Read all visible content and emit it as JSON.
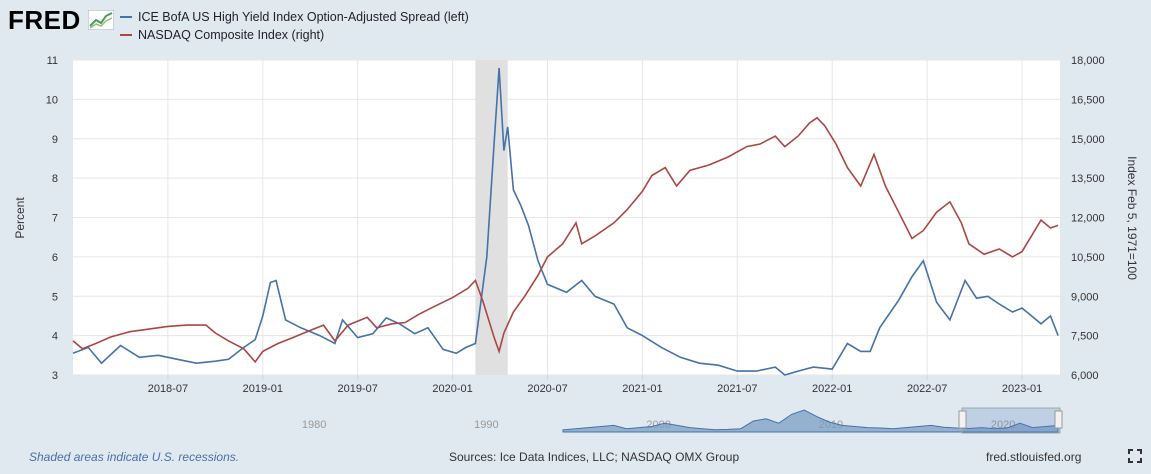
{
  "logo": {
    "text": "FRED"
  },
  "colors": {
    "spread": "#4572a7",
    "nasdaq": "#aa4643",
    "recession": "#e0e0e0",
    "plot_bg": "#ffffff",
    "grid": "#e6e6e6"
  },
  "chart_data": {
    "type": "line",
    "legend": [
      "ICE BofA US High Yield Index Option-Adjusted Spread (left)",
      "NASDAQ Composite Index (right)"
    ],
    "ylabel_left": "Percent",
    "ylabel_right": "Index Feb 5, 1971=100",
    "ylim_left": [
      3,
      11
    ],
    "ylim_right": [
      6000,
      18000
    ],
    "xlim": [
      2018.0,
      2023.2
    ],
    "left_ticks": [
      "3",
      "4",
      "5",
      "6",
      "7",
      "8",
      "9",
      "10",
      "11"
    ],
    "right_ticks": [
      "6,000",
      "7,500",
      "9,000",
      "10,500",
      "12,000",
      "13,500",
      "15,000",
      "16,500",
      "18,000"
    ],
    "x_ticks": [
      "2018-07",
      "2019-01",
      "2019-07",
      "2020-01",
      "2020-07",
      "2021-01",
      "2021-07",
      "2022-01",
      "2022-07",
      "2023-01"
    ],
    "recession": [
      2020.12,
      2020.29
    ],
    "series": [
      {
        "name": "ICE BofA US High Yield Index Option-Adjusted Spread (left)",
        "points": [
          [
            2018.0,
            3.55
          ],
          [
            2018.08,
            3.7
          ],
          [
            2018.15,
            3.3
          ],
          [
            2018.25,
            3.75
          ],
          [
            2018.35,
            3.45
          ],
          [
            2018.45,
            3.5
          ],
          [
            2018.55,
            3.4
          ],
          [
            2018.65,
            3.3
          ],
          [
            2018.75,
            3.35
          ],
          [
            2018.82,
            3.4
          ],
          [
            2018.9,
            3.7
          ],
          [
            2018.96,
            3.9
          ],
          [
            2019.0,
            4.5
          ],
          [
            2019.04,
            5.35
          ],
          [
            2019.07,
            5.4
          ],
          [
            2019.12,
            4.4
          ],
          [
            2019.2,
            4.2
          ],
          [
            2019.3,
            4.0
          ],
          [
            2019.38,
            3.8
          ],
          [
            2019.42,
            4.4
          ],
          [
            2019.5,
            3.95
          ],
          [
            2019.58,
            4.05
          ],
          [
            2019.65,
            4.45
          ],
          [
            2019.72,
            4.3
          ],
          [
            2019.8,
            4.05
          ],
          [
            2019.87,
            4.2
          ],
          [
            2019.95,
            3.65
          ],
          [
            2020.02,
            3.55
          ],
          [
            2020.07,
            3.7
          ],
          [
            2020.12,
            3.8
          ],
          [
            2020.18,
            6.0
          ],
          [
            2020.22,
            9.0
          ],
          [
            2020.245,
            10.8
          ],
          [
            2020.27,
            8.7
          ],
          [
            2020.29,
            9.3
          ],
          [
            2020.32,
            7.7
          ],
          [
            2020.36,
            7.3
          ],
          [
            2020.4,
            6.8
          ],
          [
            2020.45,
            5.9
          ],
          [
            2020.5,
            5.3
          ],
          [
            2020.6,
            5.1
          ],
          [
            2020.68,
            5.4
          ],
          [
            2020.75,
            5.0
          ],
          [
            2020.85,
            4.8
          ],
          [
            2020.92,
            4.2
          ],
          [
            2021.0,
            4.0
          ],
          [
            2021.1,
            3.7
          ],
          [
            2021.2,
            3.45
          ],
          [
            2021.3,
            3.3
          ],
          [
            2021.4,
            3.25
          ],
          [
            2021.5,
            3.1
          ],
          [
            2021.6,
            3.1
          ],
          [
            2021.7,
            3.2
          ],
          [
            2021.75,
            3.0
          ],
          [
            2021.82,
            3.1
          ],
          [
            2021.9,
            3.2
          ],
          [
            2022.0,
            3.15
          ],
          [
            2022.08,
            3.8
          ],
          [
            2022.15,
            3.6
          ],
          [
            2022.2,
            3.6
          ],
          [
            2022.25,
            4.2
          ],
          [
            2022.35,
            4.9
          ],
          [
            2022.42,
            5.5
          ],
          [
            2022.48,
            5.9
          ],
          [
            2022.55,
            4.85
          ],
          [
            2022.62,
            4.4
          ],
          [
            2022.7,
            5.4
          ],
          [
            2022.76,
            4.95
          ],
          [
            2022.82,
            5.0
          ],
          [
            2022.88,
            4.8
          ],
          [
            2022.95,
            4.6
          ],
          [
            2023.0,
            4.7
          ],
          [
            2023.05,
            4.5
          ],
          [
            2023.1,
            4.3
          ],
          [
            2023.15,
            4.5
          ],
          [
            2023.19,
            4.0
          ]
        ]
      },
      {
        "name": "NASDAQ Composite Index (right)",
        "points": [
          [
            2018.0,
            7300
          ],
          [
            2018.05,
            7000
          ],
          [
            2018.12,
            7200
          ],
          [
            2018.2,
            7450
          ],
          [
            2018.3,
            7650
          ],
          [
            2018.4,
            7750
          ],
          [
            2018.5,
            7850
          ],
          [
            2018.6,
            7900
          ],
          [
            2018.7,
            7900
          ],
          [
            2018.75,
            7600
          ],
          [
            2018.82,
            7300
          ],
          [
            2018.9,
            7000
          ],
          [
            2018.96,
            6500
          ],
          [
            2019.0,
            6900
          ],
          [
            2019.08,
            7200
          ],
          [
            2019.15,
            7400
          ],
          [
            2019.25,
            7700
          ],
          [
            2019.32,
            7900
          ],
          [
            2019.38,
            7300
          ],
          [
            2019.45,
            7900
          ],
          [
            2019.55,
            8200
          ],
          [
            2019.6,
            7800
          ],
          [
            2019.68,
            7950
          ],
          [
            2019.75,
            8000
          ],
          [
            2019.82,
            8300
          ],
          [
            2019.9,
            8600
          ],
          [
            2020.0,
            8950
          ],
          [
            2020.08,
            9300
          ],
          [
            2020.12,
            9600
          ],
          [
            2020.16,
            8800
          ],
          [
            2020.22,
            7400
          ],
          [
            2020.245,
            6900
          ],
          [
            2020.27,
            7600
          ],
          [
            2020.32,
            8400
          ],
          [
            2020.38,
            9000
          ],
          [
            2020.45,
            9800
          ],
          [
            2020.5,
            10500
          ],
          [
            2020.58,
            11000
          ],
          [
            2020.65,
            11800
          ],
          [
            2020.68,
            11000
          ],
          [
            2020.75,
            11300
          ],
          [
            2020.85,
            11800
          ],
          [
            2020.92,
            12300
          ],
          [
            2021.0,
            13000
          ],
          [
            2021.05,
            13600
          ],
          [
            2021.12,
            13900
          ],
          [
            2021.18,
            13200
          ],
          [
            2021.25,
            13800
          ],
          [
            2021.35,
            14000
          ],
          [
            2021.45,
            14300
          ],
          [
            2021.55,
            14700
          ],
          [
            2021.62,
            14800
          ],
          [
            2021.7,
            15100
          ],
          [
            2021.75,
            14700
          ],
          [
            2021.82,
            15100
          ],
          [
            2021.88,
            15600
          ],
          [
            2021.92,
            15800
          ],
          [
            2021.96,
            15500
          ],
          [
            2022.02,
            14800
          ],
          [
            2022.08,
            13900
          ],
          [
            2022.15,
            13200
          ],
          [
            2022.22,
            14400
          ],
          [
            2022.28,
            13200
          ],
          [
            2022.35,
            12200
          ],
          [
            2022.42,
            11200
          ],
          [
            2022.48,
            11500
          ],
          [
            2022.55,
            12200
          ],
          [
            2022.62,
            12600
          ],
          [
            2022.68,
            11800
          ],
          [
            2022.72,
            11000
          ],
          [
            2022.8,
            10600
          ],
          [
            2022.88,
            10800
          ],
          [
            2022.95,
            10500
          ],
          [
            2023.0,
            10700
          ],
          [
            2023.05,
            11300
          ],
          [
            2023.1,
            11900
          ],
          [
            2023.15,
            11600
          ],
          [
            2023.19,
            11700
          ]
        ]
      }
    ]
  },
  "navigator": {
    "labels": [
      "1980",
      "1990",
      "2000",
      "2010",
      "2020"
    ],
    "values": [
      0.1,
      0.15,
      0.2,
      0.25,
      0.3,
      0.15,
      0.2,
      0.25,
      0.4,
      0.3,
      0.2,
      0.15,
      0.1,
      0.12,
      0.15,
      0.5,
      0.6,
      0.4,
      0.8,
      1.0,
      0.7,
      0.45,
      0.3,
      0.25,
      0.2,
      0.18,
      0.15,
      0.2,
      0.25,
      0.3,
      0.22,
      0.18,
      0.16,
      0.2,
      0.15,
      0.18,
      0.4,
      0.2,
      0.25,
      0.3
    ]
  },
  "footer": {
    "recession_note": "Shaded areas indicate U.S. recessions.",
    "sources": "Sources: Ice Data Indices, LLC; NASDAQ OMX Group",
    "site": "fred.stlouisfed.org"
  }
}
